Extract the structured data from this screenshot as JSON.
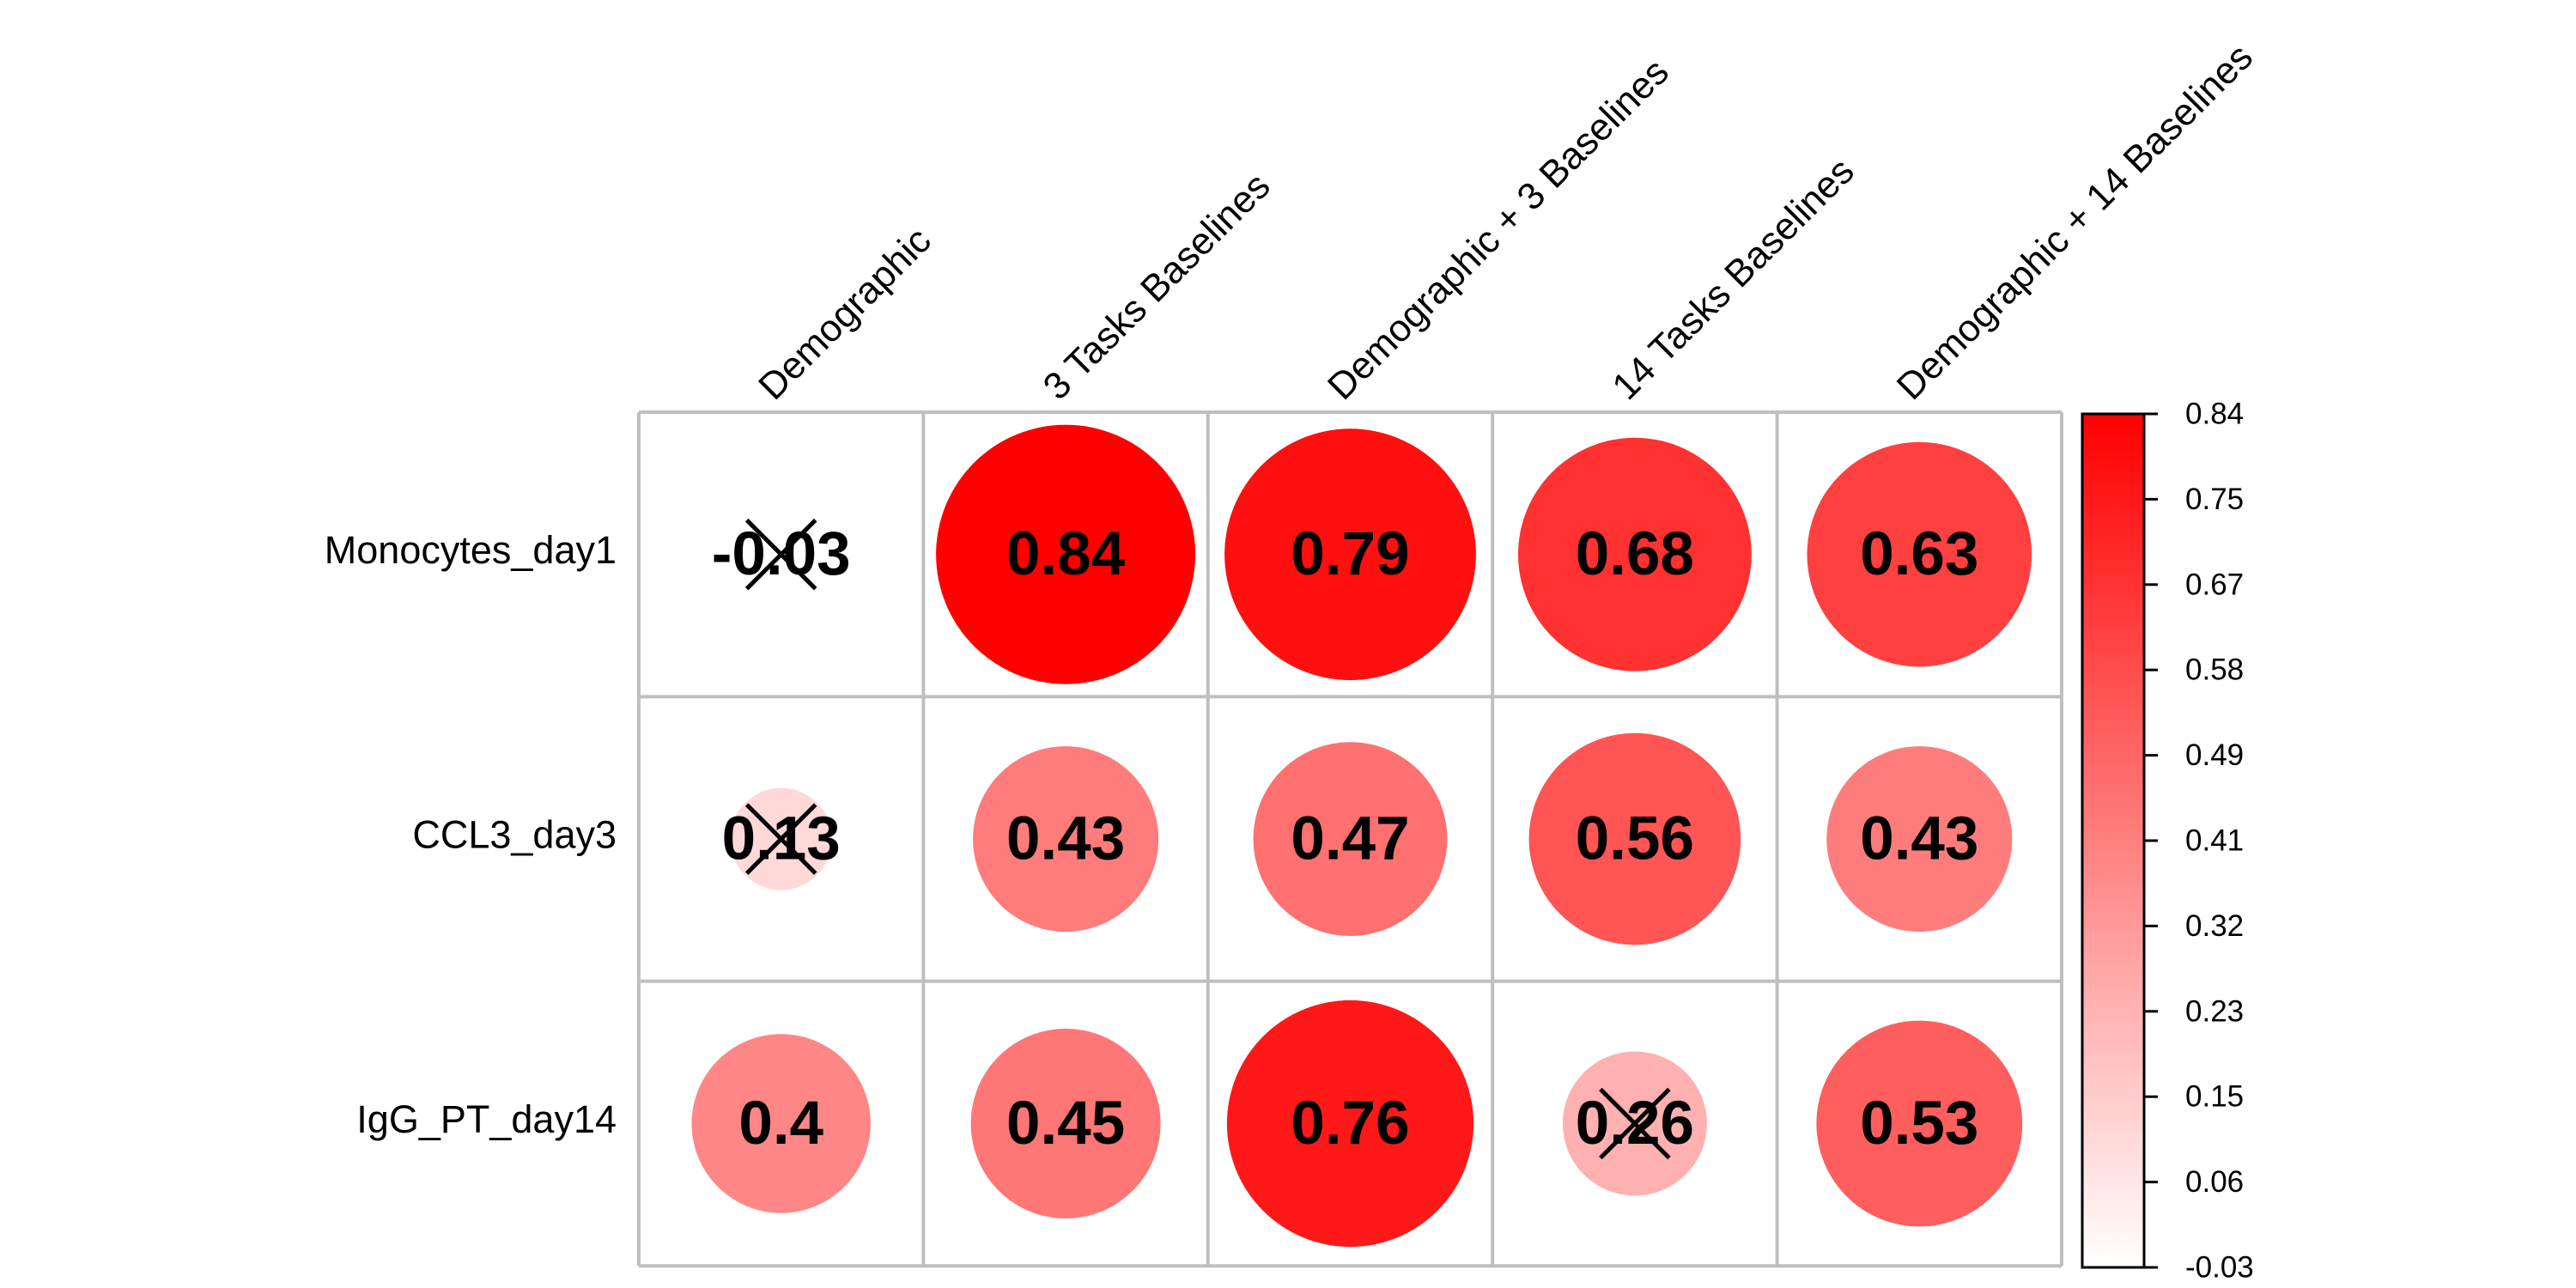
{
  "chart_data": {
    "type": "heatmap",
    "columns": [
      "Demographic",
      "3 Tasks Baselines",
      "Demographic + 3 Baselines",
      "14 Tasks Baselines",
      "Demographic + 14 Baselines"
    ],
    "rows": [
      "Monocytes_day1",
      "CCL3_day3",
      "IgG_PT_day14"
    ],
    "values": [
      [
        -0.03,
        0.84,
        0.79,
        0.68,
        0.63
      ],
      [
        0.13,
        0.43,
        0.47,
        0.56,
        0.43
      ],
      [
        0.4,
        0.45,
        0.76,
        0.26,
        0.53
      ]
    ],
    "value_labels": [
      [
        "-0.03",
        "0.84",
        "0.79",
        "0.68",
        "0.63"
      ],
      [
        "0.13",
        "0.43",
        "0.47",
        "0.56",
        "0.43"
      ],
      [
        "0.4",
        "0.45",
        "0.76",
        "0.26",
        "0.53"
      ]
    ],
    "crossed_out": [
      [
        true,
        false,
        false,
        false,
        false
      ],
      [
        true,
        false,
        false,
        false,
        false
      ],
      [
        false,
        false,
        false,
        true,
        false
      ]
    ],
    "colorbar": {
      "min": -0.03,
      "max": 0.84,
      "ticks": [
        "0.84",
        "0.75",
        "0.67",
        "0.58",
        "0.49",
        "0.41",
        "0.32",
        "0.23",
        "0.15",
        "0.06",
        "-0.03"
      ],
      "low_color": "#ffffff",
      "high_color": "#ff0000"
    },
    "marker": "circle",
    "grid": true,
    "legend": "right",
    "title": "",
    "xlabel": "",
    "ylabel": ""
  }
}
